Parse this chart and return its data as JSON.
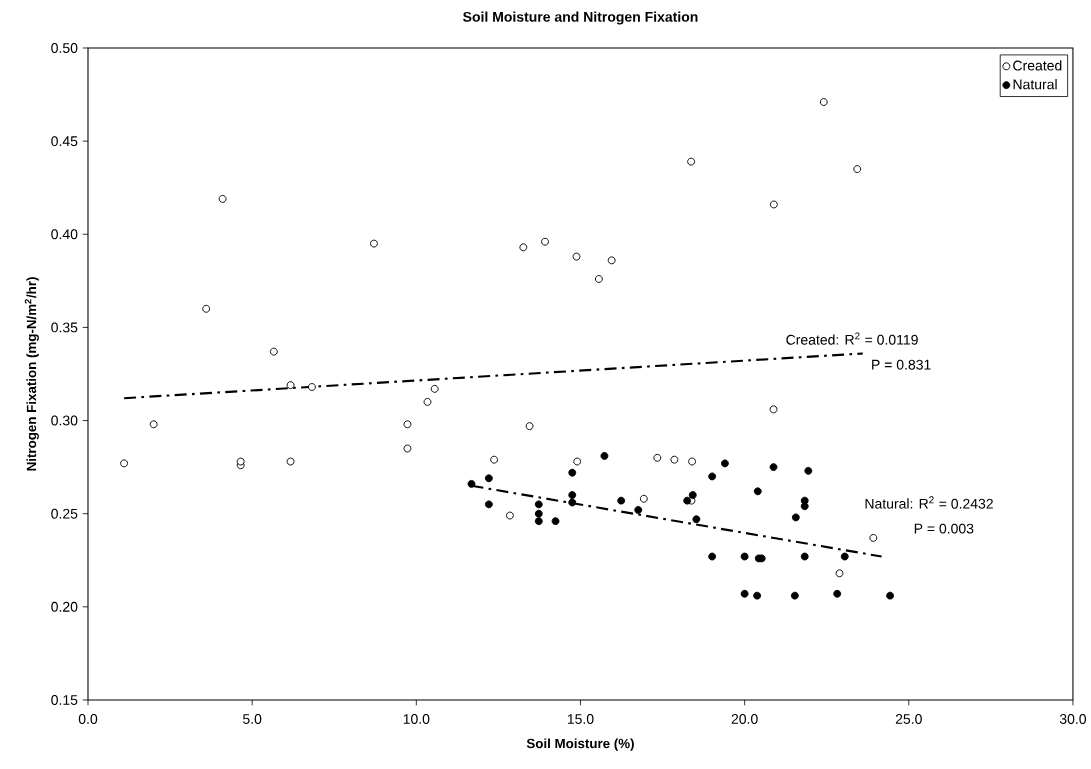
{
  "chart_data": {
    "type": "scatter",
    "title": "Soil Moisture and Nitrogen Fixation",
    "xlabel": "Soil Moisture (%)",
    "ylabel": "Nitrogen Fixation (mg-N/m$^{2}$/hr)",
    "xlim": [
      0,
      30
    ],
    "ylim": [
      0.15,
      0.5
    ],
    "xticks": [
      {
        "value": 0,
        "label": "0.0"
      },
      {
        "value": 5,
        "label": "5.0"
      },
      {
        "value": 10,
        "label": "10.0"
      },
      {
        "value": 15,
        "label": "15.0"
      },
      {
        "value": 20,
        "label": "20.0"
      },
      {
        "value": 25,
        "label": "25.0"
      },
      {
        "value": 30,
        "label": "30.0"
      }
    ],
    "yticks": [
      0.15,
      {
        "value": 0.2,
        "label": "0.20"
      },
      0.25,
      {
        "value": 0.3,
        "label": "0.30"
      },
      0.35,
      {
        "value": 0.4,
        "label": "0.40"
      },
      0.45,
      {
        "value": 0.5,
        "label": "0.50"
      }
    ],
    "legend": "top right",
    "grid": false,
    "series": [
      {
        "name": "Created",
        "color": "#000000",
        "marker": "circle",
        "x": [
          1.1,
          2.0,
          3.6,
          4.1,
          4.65,
          4.65,
          5.66,
          6.17,
          6.17,
          6.82,
          8.71,
          9.73,
          9.73,
          10.34,
          10.56,
          12.37,
          12.85,
          13.26,
          13.45,
          13.92,
          14.88,
          14.9,
          15.56,
          15.95,
          16.93,
          17.34,
          17.86,
          18.37,
          18.4,
          18.38,
          20.88,
          20.89,
          22.41,
          22.89,
          23.43,
          23.92
        ],
        "values": [
          0.277,
          0.298,
          0.36,
          0.419,
          0.276,
          0.278,
          0.337,
          0.319,
          0.278,
          0.318,
          0.395,
          0.298,
          0.285,
          0.31,
          0.317,
          0.279,
          0.249,
          0.393,
          0.297,
          0.396,
          0.388,
          0.278,
          0.376,
          0.386,
          0.258,
          0.28,
          0.279,
          0.439,
          0.278,
          0.257,
          0.306,
          0.416,
          0.471,
          0.218,
          0.435,
          0.237
        ]
      },
      {
        "name": "Natural",
        "color": "#000000",
        "marker": "circle",
        "x": [
          11.68,
          12.21,
          12.21,
          13.73,
          13.73,
          13.73,
          14.24,
          14.75,
          14.75,
          14.75,
          15.73,
          16.24,
          16.76,
          18.42,
          18.25,
          18.53,
          19.01,
          19.4,
          19.01,
          20.0,
          20.0,
          20.4,
          20.38,
          20.43,
          20.52,
          20.88,
          21.53,
          21.56,
          21.83,
          21.83,
          21.83,
          21.94,
          22.82,
          23.05,
          24.43
        ],
        "values": [
          0.266,
          0.269,
          0.255,
          0.255,
          0.25,
          0.246,
          0.246,
          0.272,
          0.26,
          0.256,
          0.281,
          0.257,
          0.252,
          0.26,
          0.257,
          0.247,
          0.27,
          0.277,
          0.227,
          0.227,
          0.207,
          0.262,
          0.206,
          0.226,
          0.226,
          0.275,
          0.206,
          0.248,
          0.227,
          0.257,
          0.254,
          0.273,
          0.207,
          0.227,
          0.206
        ]
      },
      {
        "type": "line",
        "line_style": "dashed",
        "marker": "none",
        "color": "#000000",
        "x": [
          1.1,
          23.6
        ],
        "values": [
          0.312,
          0.336
        ]
      },
      {
        "type": "line",
        "line_style": "dashed",
        "marker": "none",
        "color": "#000000",
        "x": [
          11.68,
          24.17
        ],
        "values": [
          0.265,
          0.227
        ]
      }
    ],
    "annotations": [
      "Created: R$^{2}$ = 0.0119",
      "P = 0.831",
      "Natural: R$^{2}$ = 0.2432",
      "P = 0.003"
    ]
  }
}
